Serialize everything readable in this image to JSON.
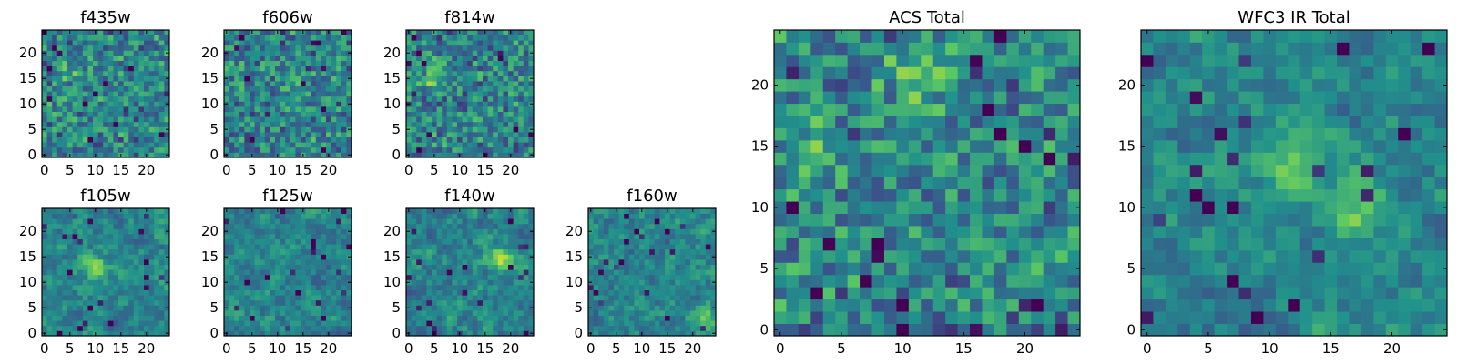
{
  "figure": {
    "colormap": "viridis",
    "colormap_stops": [
      "#440154",
      "#3b528b",
      "#21918c",
      "#5ec962",
      "#fde725"
    ],
    "axis_color": "#000000"
  },
  "chart_data": [
    {
      "type": "heatmap",
      "title": "f435w",
      "grid_size": 25,
      "xlim": [
        0,
        24
      ],
      "ylim": [
        0,
        24
      ],
      "xticks": [
        0,
        5,
        10,
        15,
        20
      ],
      "yticks": [
        0,
        5,
        10,
        15,
        20
      ],
      "seed": 11,
      "smooth": 0,
      "hot_spots": [
        [
          5,
          16,
          0.2
        ]
      ],
      "cold_spots": []
    },
    {
      "type": "heatmap",
      "title": "f606w",
      "grid_size": 25,
      "xlim": [
        0,
        24
      ],
      "ylim": [
        0,
        24
      ],
      "xticks": [
        0,
        5,
        10,
        15,
        20
      ],
      "yticks": [
        0,
        5,
        10,
        15,
        20
      ],
      "seed": 23,
      "smooth": 0,
      "hot_spots": [],
      "cold_spots": []
    },
    {
      "type": "heatmap",
      "title": "f814w",
      "grid_size": 25,
      "xlim": [
        0,
        24
      ],
      "ylim": [
        0,
        24
      ],
      "xticks": [
        0,
        5,
        10,
        15,
        20
      ],
      "yticks": [
        0,
        5,
        10,
        15,
        20
      ],
      "seed": 37,
      "smooth": 0,
      "hot_spots": [
        [
          5,
          15,
          0.25
        ]
      ],
      "cold_spots": [
        [
          15,
          0,
          0.3
        ]
      ]
    },
    {
      "type": "heatmap",
      "title": "f105w",
      "grid_size": 25,
      "xlim": [
        0,
        24
      ],
      "ylim": [
        0,
        24
      ],
      "xticks": [
        0,
        5,
        10,
        15,
        20
      ],
      "yticks": [
        0,
        5,
        10,
        15,
        20
      ],
      "seed": 41,
      "smooth": 1,
      "hot_spots": [
        [
          10,
          13,
          0.3
        ]
      ],
      "cold_spots": [
        [
          4,
          19,
          0.3
        ]
      ]
    },
    {
      "type": "heatmap",
      "title": "f125w",
      "grid_size": 25,
      "xlim": [
        0,
        24
      ],
      "ylim": [
        0,
        24
      ],
      "xticks": [
        0,
        5,
        10,
        15,
        20
      ],
      "yticks": [
        0,
        5,
        10,
        15,
        20
      ],
      "seed": 53,
      "smooth": 1,
      "hot_spots": [],
      "cold_spots": [
        [
          19,
          15,
          0.35
        ]
      ]
    },
    {
      "type": "heatmap",
      "title": "f140w",
      "grid_size": 25,
      "xlim": [
        0,
        24
      ],
      "ylim": [
        0,
        24
      ],
      "xticks": [
        0,
        5,
        10,
        15,
        20
      ],
      "yticks": [
        0,
        5,
        10,
        15,
        20
      ],
      "seed": 67,
      "smooth": 1,
      "hot_spots": [
        [
          18,
          15,
          0.4
        ]
      ],
      "cold_spots": [
        [
          14,
          6,
          0.3
        ]
      ]
    },
    {
      "type": "heatmap",
      "title": "f160w",
      "grid_size": 25,
      "xlim": [
        0,
        24
      ],
      "ylim": [
        0,
        24
      ],
      "xticks": [
        0,
        5,
        10,
        15,
        20
      ],
      "yticks": [
        0,
        5,
        10,
        15,
        20
      ],
      "seed": 79,
      "smooth": 1,
      "hot_spots": [
        [
          22,
          3,
          0.3
        ]
      ],
      "cold_spots": [
        [
          2,
          6,
          0.3
        ]
      ]
    },
    {
      "type": "heatmap",
      "title": "ACS Total",
      "grid_size": 25,
      "xlim": [
        0,
        24
      ],
      "ylim": [
        0,
        24
      ],
      "xticks": [
        0,
        5,
        10,
        15,
        20
      ],
      "yticks": [
        0,
        5,
        10,
        15,
        20
      ],
      "seed": 97,
      "smooth": 0,
      "hot_spots": [
        [
          3,
          15,
          0.25
        ],
        [
          12,
          21,
          0.3
        ]
      ],
      "cold_spots": [
        [
          17,
          18,
          0.6
        ],
        [
          7,
          4,
          0.5
        ],
        [
          4,
          7,
          0.5
        ],
        [
          1,
          21,
          0.5
        ],
        [
          20,
          15,
          0.5
        ],
        [
          16,
          0,
          0.5
        ],
        [
          20,
          2,
          0.5
        ]
      ]
    },
    {
      "type": "heatmap",
      "title": "WFC3 IR Total",
      "grid_size": 25,
      "xlim": [
        0,
        24
      ],
      "ylim": [
        0,
        24
      ],
      "xticks": [
        0,
        5,
        10,
        15,
        20
      ],
      "yticks": [
        0,
        5,
        10,
        15,
        20
      ],
      "seed": 113,
      "smooth": 1,
      "hot_spots": [
        [
          12,
          13,
          0.35
        ],
        [
          17,
          10,
          0.3
        ]
      ],
      "cold_spots": [
        [
          7,
          4,
          0.6
        ],
        [
          5,
          10,
          0.4
        ],
        [
          0,
          22,
          0.4
        ],
        [
          0,
          1,
          0.4
        ]
      ]
    }
  ]
}
